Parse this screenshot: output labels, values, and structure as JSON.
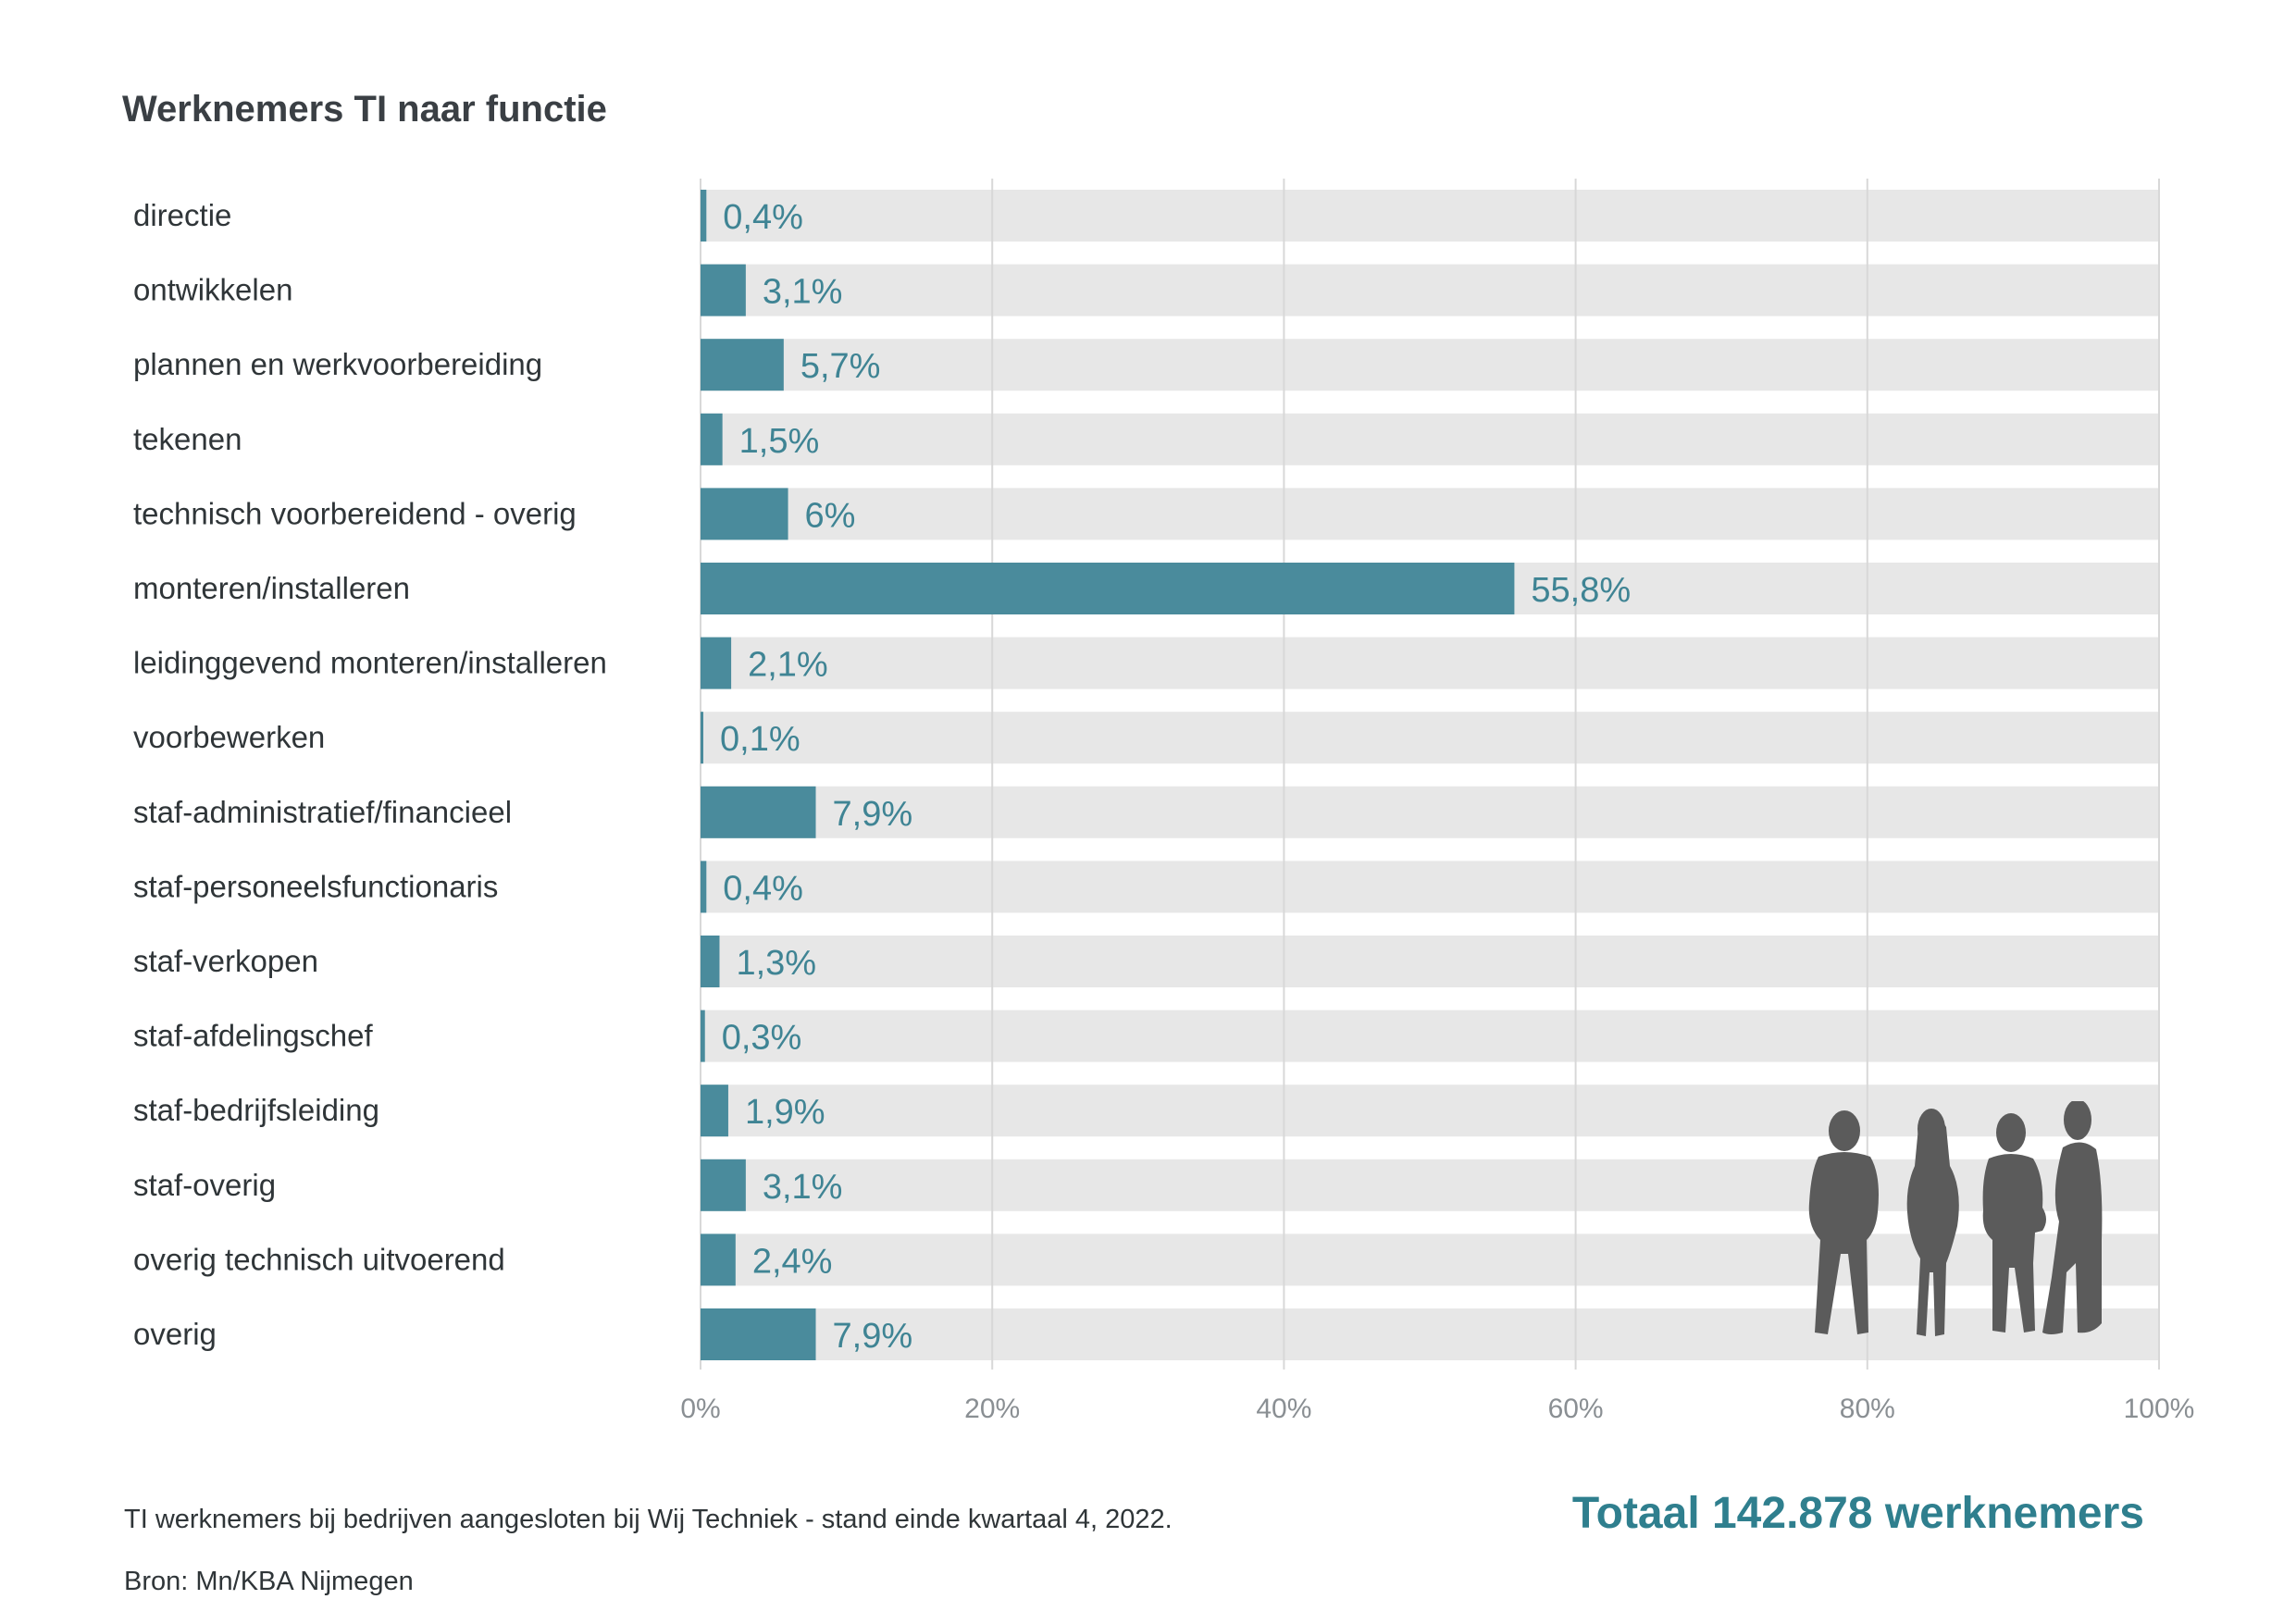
{
  "header": {
    "title": "Werknemers TI naar functie"
  },
  "colors": {
    "bar": "#4a8b9c",
    "track": "#e7e7e7",
    "value_label": "#3f8494",
    "total": "#2f7f8e",
    "silhouette": "#5b5b5b"
  },
  "chart_data": {
    "type": "bar",
    "orientation": "horizontal",
    "title": "Werknemers TI naar functie",
    "xlabel": "",
    "ylabel": "",
    "xlim": [
      0,
      100
    ],
    "x_ticks": [
      0,
      20,
      40,
      60,
      80,
      100
    ],
    "x_tick_labels": [
      "0%",
      "20%",
      "40%",
      "60%",
      "80%",
      "100%"
    ],
    "grid": true,
    "categories": [
      "directie",
      "ontwikkelen",
      "plannen en werkvoorbereiding",
      "tekenen",
      "technisch voorbereidend - overig",
      "monteren/installeren",
      "leidinggevend monteren/installeren",
      "voorbewerken",
      "staf-administratief/financieel",
      "staf-personeelsfunctionaris",
      "staf-verkopen",
      "staf-afdelingschef",
      "staf-bedrijfsleiding",
      "staf-overig",
      "overig technisch uitvoerend",
      "overig"
    ],
    "values": [
      0.4,
      3.1,
      5.7,
      1.5,
      6,
      55.8,
      2.1,
      0.1,
      7.9,
      0.4,
      1.3,
      0.3,
      1.9,
      3.1,
      2.4,
      7.9
    ],
    "value_labels": [
      "0,4%",
      "3,1%",
      "5,7%",
      "1,5%",
      "6%",
      "55,8%",
      "2,1%",
      "0,1%",
      "7,9%",
      "0,4%",
      "1,3%",
      "0,3%",
      "1,9%",
      "3,1%",
      "2,4%",
      "7,9%"
    ]
  },
  "footer": {
    "note": "TI werknemers bij bedrijven aangesloten bij Wij Techniek - stand einde kwartaal 4, 2022.",
    "source": "Bron: Mn/KBA Nijmegen",
    "total": "Totaal 142.878 werknemers"
  },
  "decoration": {
    "people_icon": "people-silhouettes-icon"
  }
}
